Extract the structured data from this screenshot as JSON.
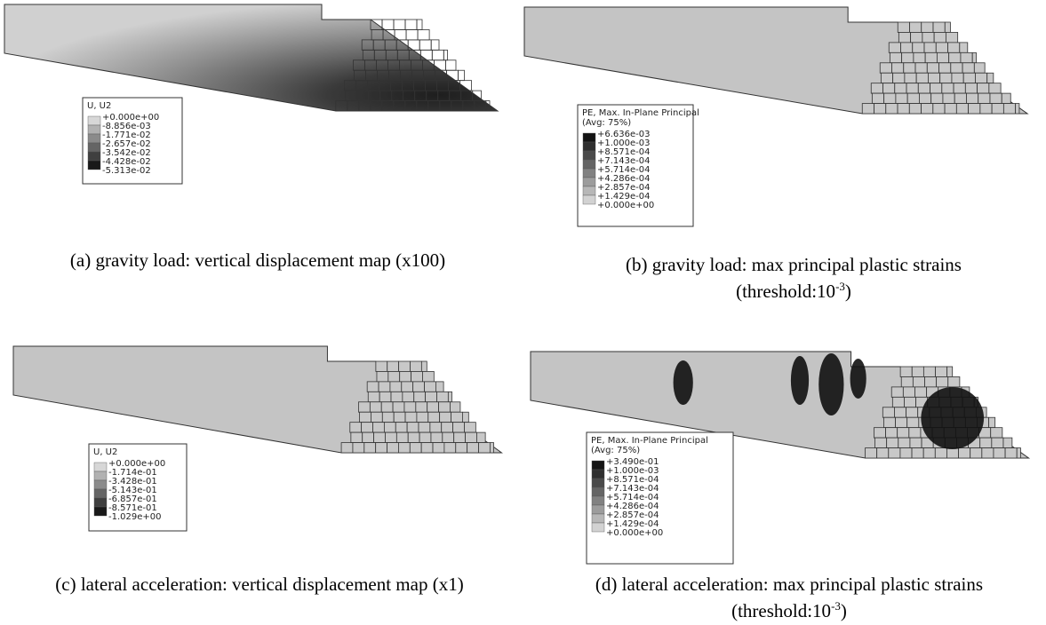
{
  "panels": [
    {
      "legend": {
        "title": [
          "U, U2"
        ],
        "entries": [
          "+0.000e+00",
          "-8.856e-03",
          "-1.771e-02",
          "-2.657e-02",
          "-3.542e-02",
          "-4.428e-02",
          "-5.313e-02"
        ]
      },
      "caption": {
        "line1": "(a) gravity load: vertical displacement map (x100)"
      }
    },
    {
      "legend": {
        "title": [
          "PE, Max. In-Plane Principal",
          "(Avg: 75%)"
        ],
        "entries": [
          "+6.636e-03",
          "+1.000e-03",
          "+8.571e-04",
          "+7.143e-04",
          "+5.714e-04",
          "+4.286e-04",
          "+2.857e-04",
          "+1.429e-04",
          "+0.000e+00"
        ]
      },
      "caption": {
        "line1": "(b) gravity load: max principal plastic strains",
        "threshold": {
          "prefix": "(threshold:10",
          "exponent": "-3",
          "suffix": ")"
        }
      }
    },
    {
      "legend": {
        "title": [
          "U, U2"
        ],
        "entries": [
          "+0.000e+00",
          "-1.714e-01",
          "-3.428e-01",
          "-5.143e-01",
          "-6.857e-01",
          "-8.571e-01",
          "-1.029e+00"
        ]
      },
      "caption": {
        "line1": "(c) lateral acceleration: vertical displacement map (x1)"
      }
    },
    {
      "legend": {
        "title": [
          "PE, Max. In-Plane Principal",
          "(Avg: 75%)"
        ],
        "entries": [
          "+3.490e-01",
          "+1.000e-03",
          "+8.571e-04",
          "+7.143e-04",
          "+5.714e-04",
          "+4.286e-04",
          "+2.857e-04",
          "+1.429e-04",
          "+0.000e+00"
        ]
      },
      "caption": {
        "line1": "(d) lateral acceleration: max principal plastic strains",
        "threshold": {
          "prefix": "(threshold:10",
          "exponent": "-3",
          "suffix": ")"
        }
      }
    }
  ]
}
